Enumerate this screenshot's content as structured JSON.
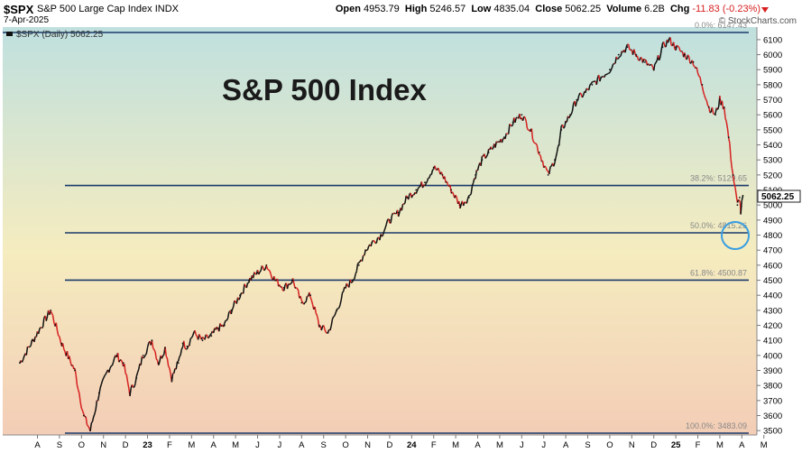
{
  "header": {
    "symbol": "$SPX",
    "index_name": "S&P 500 Large Cap Index",
    "exchange": "INDX",
    "date": "7-Apr-2025",
    "open_label": "Open",
    "open": "4953.79",
    "high_label": "High",
    "high": "5246.57",
    "low_label": "Low",
    "low": "4835.04",
    "close_label": "Close",
    "close": "5062.25",
    "volume_label": "Volume",
    "volume": "6.2B",
    "chg_label": "Chg",
    "chg": "-11.83 (-0.23%)",
    "copyright": "© StockCharts.com"
  },
  "chart_data": {
    "type": "line",
    "title": "S&P 500 Index",
    "legend": "$SPX (Daily) 5062.25",
    "xlabel": "",
    "ylabel": "",
    "ylim": [
      3450,
      6170
    ],
    "grid": false,
    "yticks": [
      3500,
      3600,
      3700,
      3800,
      3900,
      4000,
      4100,
      4200,
      4300,
      4400,
      4500,
      4600,
      4700,
      4800,
      4900,
      5000,
      5100,
      5200,
      5300,
      5400,
      5500,
      5600,
      5700,
      5800,
      5900,
      6000,
      6100
    ],
    "xticks": [
      {
        "label": "A",
        "t": 0.8
      },
      {
        "label": "S",
        "t": 1.8
      },
      {
        "label": "O",
        "t": 2.8
      },
      {
        "label": "N",
        "t": 3.8
      },
      {
        "label": "D",
        "t": 4.8
      },
      {
        "label": "23",
        "t": 5.8
      },
      {
        "label": "F",
        "t": 6.8
      },
      {
        "label": "M",
        "t": 7.8
      },
      {
        "label": "A",
        "t": 8.8
      },
      {
        "label": "M",
        "t": 9.8
      },
      {
        "label": "J",
        "t": 10.8
      },
      {
        "label": "J",
        "t": 11.8
      },
      {
        "label": "A",
        "t": 12.8
      },
      {
        "label": "S",
        "t": 13.8
      },
      {
        "label": "O",
        "t": 14.8
      },
      {
        "label": "N",
        "t": 15.8
      },
      {
        "label": "D",
        "t": 16.8
      },
      {
        "label": "24",
        "t": 17.8
      },
      {
        "label": "F",
        "t": 18.8
      },
      {
        "label": "M",
        "t": 19.8
      },
      {
        "label": "A",
        "t": 20.8
      },
      {
        "label": "M",
        "t": 21.8
      },
      {
        "label": "J",
        "t": 22.8
      },
      {
        "label": "J",
        "t": 23.8
      },
      {
        "label": "A",
        "t": 24.8
      },
      {
        "label": "S",
        "t": 25.8
      },
      {
        "label": "O",
        "t": 26.8
      },
      {
        "label": "N",
        "t": 27.8
      },
      {
        "label": "D",
        "t": 28.8
      },
      {
        "label": "25",
        "t": 29.8
      },
      {
        "label": "F",
        "t": 30.8
      },
      {
        "label": "M",
        "t": 31.8
      },
      {
        "label": "A",
        "t": 32.8
      },
      {
        "label": "M",
        "t": 33.8
      }
    ],
    "x_months": [
      0.0,
      0.6,
      1.4,
      1.9,
      2.5,
      2.9,
      3.2,
      3.6,
      4.0,
      4.4,
      4.7,
      5.0,
      5.3,
      5.6,
      6.0,
      6.3,
      6.6,
      6.9,
      7.2,
      7.4,
      7.6,
      7.9,
      8.3,
      8.7,
      9.0,
      9.3,
      9.6,
      10.0,
      10.4,
      10.8,
      11.2,
      11.6,
      12.0,
      12.4,
      12.8,
      13.2,
      13.6,
      14.0,
      14.4,
      14.8,
      15.1,
      15.4,
      15.7,
      16.0,
      16.4,
      16.8,
      17.2,
      17.6,
      18.0,
      18.4,
      18.8,
      19.2,
      19.6,
      20.0,
      20.4,
      20.7,
      21.0,
      21.3,
      21.6,
      22.0,
      22.4,
      22.8,
      23.2,
      23.6,
      24.0,
      24.3,
      24.5,
      24.6,
      24.8,
      25.0,
      25.3,
      25.7,
      26.0,
      26.4,
      26.8,
      27.2,
      27.6,
      28.0,
      28.4,
      28.8,
      29.0,
      29.2,
      29.5,
      29.8,
      30.2,
      30.6,
      31.0,
      31.3,
      31.6,
      31.8,
      32.0,
      32.2,
      32.4,
      32.6,
      32.7,
      32.75,
      32.85
    ],
    "close": [
      3950,
      4100,
      4300,
      4080,
      3900,
      3600,
      3500,
      3750,
      3900,
      4000,
      3950,
      3750,
      3850,
      4000,
      4100,
      3950,
      4050,
      3850,
      3950,
      4080,
      4060,
      4150,
      4100,
      4130,
      4180,
      4200,
      4300,
      4400,
      4500,
      4550,
      4600,
      4500,
      4450,
      4500,
      4350,
      4400,
      4200,
      4150,
      4300,
      4450,
      4500,
      4600,
      4700,
      4750,
      4800,
      4900,
      4950,
      5050,
      5100,
      5150,
      5250,
      5200,
      5100,
      5000,
      5050,
      5200,
      5300,
      5350,
      5400,
      5450,
      5550,
      5600,
      5500,
      5350,
      5200,
      5300,
      5400,
      5500,
      5550,
      5600,
      5700,
      5750,
      5800,
      5850,
      5900,
      6000,
      6050,
      6000,
      5950,
      5900,
      5970,
      6050,
      6100,
      6050,
      6000,
      5950,
      5800,
      5650,
      5600,
      5700,
      5650,
      5450,
      5200,
      5000,
      5050,
      4950,
      5062
    ],
    "fibonacci": [
      {
        "label": "0.0%: 6147.43",
        "value": 6147.43
      },
      {
        "label": "38.2%: 5129.65",
        "value": 5129.65
      },
      {
        "label": "50.0%: 4815.26",
        "value": 4815.26
      },
      {
        "label": "61.8%: 4500.87",
        "value": 4500.87
      },
      {
        "label": "100.0%: 3483.09",
        "value": 3483.09
      }
    ],
    "last_price_label": "5062.25",
    "last_price": 5062.25,
    "colors": {
      "line": "#111111",
      "down": "#d62020",
      "fib": "#1b3a6b",
      "circle": "#3a9ee0",
      "bg_top": "#bfe0df",
      "bg_mid": "#f5ecbf",
      "bg_bottom": "#f3cdb6"
    }
  }
}
